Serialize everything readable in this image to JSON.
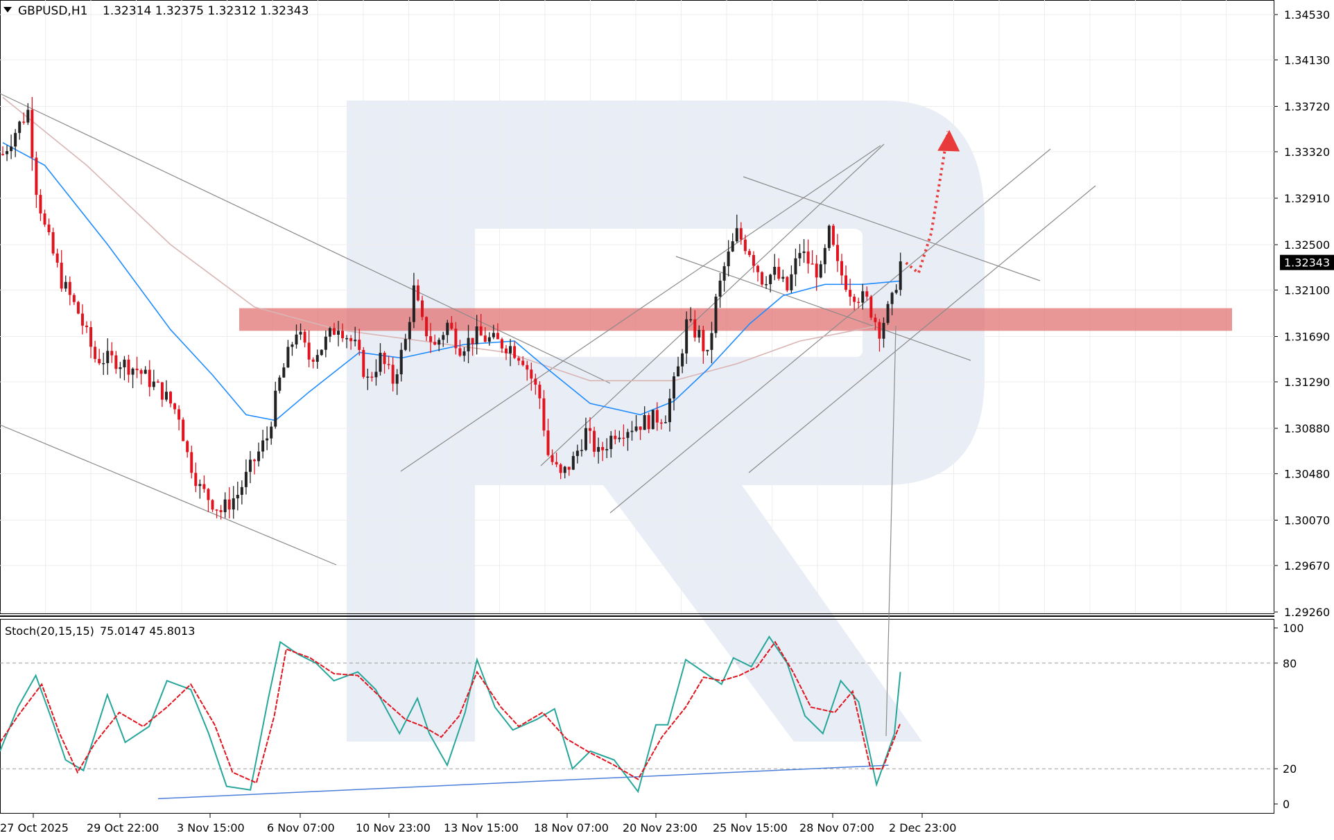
{
  "header": {
    "symbol": "GBPUSD,H1",
    "ohlc": "1.32314 1.32375 1.32312 1.32343"
  },
  "indicator": {
    "name": "Stoch(20,15,15)",
    "values": "75.0147 45.8013"
  },
  "colors": {
    "bull_candle": "#222222",
    "bear_candle": "#e0141e",
    "ma_fast": "#1e8cff",
    "ma_slow": "#d9b5b5",
    "zone": "#e06a6a",
    "forecast": "#e83a3a",
    "stoch_main": "#26a69a",
    "stoch_signal": "#e0141e",
    "stoch_trend": "#4a7fd9",
    "watermark": "#e9edf5"
  },
  "chart_data": [
    {
      "type": "candlestick",
      "title": "GBPUSD,H1",
      "current_price": "1.32343",
      "y_ticks": [
        "1.34530",
        "1.34130",
        "1.33720",
        "1.33320",
        "1.32910",
        "1.32500",
        "1.32100",
        "1.31690",
        "1.31290",
        "1.30880",
        "1.30480",
        "1.30070",
        "1.29670",
        "1.29260"
      ],
      "x_ticks": [
        "27 Oct 2025",
        "29 Oct 22:00",
        "3 Nov 15:00",
        "6 Nov 07:00",
        "10 Nov 23:00",
        "13 Nov 15:00",
        "18 Nov 07:00",
        "20 Nov 23:00",
        "25 Nov 15:00",
        "28 Nov 07:00",
        "2 Dec 23:00"
      ],
      "ylim": [
        1.2926,
        1.3453
      ],
      "price_path": [
        [
          0,
          1.333
        ],
        [
          3,
          1.335
        ],
        [
          6,
          1.3368
        ],
        [
          8,
          1.33
        ],
        [
          10,
          1.3265
        ],
        [
          14,
          1.3218
        ],
        [
          18,
          1.319
        ],
        [
          22,
          1.315
        ],
        [
          27,
          1.3148
        ],
        [
          32,
          1.314
        ],
        [
          38,
          1.312
        ],
        [
          42,
          1.31
        ],
        [
          44,
          1.3065
        ],
        [
          47,
          1.3035
        ],
        [
          52,
          1.3015
        ],
        [
          56,
          1.303
        ],
        [
          60,
          1.306
        ],
        [
          63,
          1.308
        ],
        [
          66,
          1.313
        ],
        [
          70,
          1.3175
        ],
        [
          73,
          1.315
        ],
        [
          76,
          1.316
        ],
        [
          80,
          1.318
        ],
        [
          84,
          1.316
        ],
        [
          87,
          1.313
        ],
        [
          90,
          1.315
        ],
        [
          93,
          1.313
        ],
        [
          96,
          1.3165
        ],
        [
          98,
          1.321
        ],
        [
          100,
          1.318
        ],
        [
          103,
          1.316
        ],
        [
          106,
          1.318
        ],
        [
          109,
          1.316
        ],
        [
          113,
          1.317
        ],
        [
          117,
          1.3165
        ],
        [
          121,
          1.316
        ],
        [
          124,
          1.315
        ],
        [
          128,
          1.3115
        ],
        [
          130,
          1.3065
        ],
        [
          133,
          1.3045
        ],
        [
          136,
          1.306
        ],
        [
          139,
          1.3085
        ],
        [
          142,
          1.3065
        ],
        [
          146,
          1.3085
        ],
        [
          150,
          1.309
        ],
        [
          154,
          1.3095
        ],
        [
          158,
          1.31
        ],
        [
          161,
          1.314
        ],
        [
          163,
          1.318
        ],
        [
          166,
          1.317
        ],
        [
          168,
          1.315
        ],
        [
          170,
          1.32
        ],
        [
          172,
          1.323
        ],
        [
          175,
          1.326
        ],
        [
          178,
          1.3245
        ],
        [
          181,
          1.322
        ],
        [
          184,
          1.3225
        ],
        [
          187,
          1.321
        ],
        [
          190,
          1.3245
        ],
        [
          193,
          1.323
        ],
        [
          195,
          1.3225
        ],
        [
          197,
          1.326
        ],
        [
          199,
          1.323
        ],
        [
          202,
          1.321
        ],
        [
          206,
          1.32
        ],
        [
          209,
          1.3175
        ],
        [
          212,
          1.32
        ],
        [
          214,
          1.3234
        ]
      ],
      "ma_fast": [
        [
          0,
          1.334
        ],
        [
          10,
          1.332
        ],
        [
          25,
          1.325
        ],
        [
          40,
          1.3175
        ],
        [
          50,
          1.3135
        ],
        [
          58,
          1.31
        ],
        [
          65,
          1.3095
        ],
        [
          73,
          1.312
        ],
        [
          85,
          1.3155
        ],
        [
          95,
          1.315
        ],
        [
          110,
          1.3162
        ],
        [
          122,
          1.3165
        ],
        [
          130,
          1.314
        ],
        [
          140,
          1.311
        ],
        [
          152,
          1.31
        ],
        [
          160,
          1.3112
        ],
        [
          168,
          1.314
        ],
        [
          178,
          1.318
        ],
        [
          186,
          1.3205
        ],
        [
          196,
          1.3215
        ],
        [
          205,
          1.3215
        ],
        [
          214,
          1.3218
        ]
      ],
      "ma_slow": [
        [
          0,
          1.338
        ],
        [
          20,
          1.332
        ],
        [
          40,
          1.325
        ],
        [
          60,
          1.3195
        ],
        [
          80,
          1.3175
        ],
        [
          100,
          1.3165
        ],
        [
          120,
          1.3155
        ],
        [
          140,
          1.313
        ],
        [
          160,
          1.313
        ],
        [
          175,
          1.3145
        ],
        [
          190,
          1.3165
        ],
        [
          208,
          1.3178
        ]
      ],
      "resistance_zone": [
        1.3174,
        1.3194
      ],
      "forecast": [
        [
          214,
          1.3234
        ],
        [
          217,
          1.3225
        ],
        [
          220,
          1.326
        ],
        [
          224,
          1.335
        ]
      ]
    },
    {
      "type": "line",
      "title": "Stoch(20,15,15)",
      "ylim": [
        0,
        100
      ],
      "y_ticks": [
        "100",
        "80",
        "20",
        "0"
      ],
      "levels": [
        80,
        20
      ],
      "series": [
        {
          "name": "main",
          "values_path": [
            [
              0,
              30
            ],
            [
              3,
              55
            ],
            [
              6,
              73
            ],
            [
              9,
              45
            ],
            [
              11,
              25
            ],
            [
              14,
              19
            ],
            [
              18,
              62
            ],
            [
              21,
              35
            ],
            [
              25,
              44
            ],
            [
              28,
              70
            ],
            [
              32,
              65
            ],
            [
              35,
              40
            ],
            [
              38,
              10
            ],
            [
              42,
              8
            ],
            [
              45,
              60
            ],
            [
              47,
              92
            ],
            [
              50,
              85
            ],
            [
              53,
              80
            ],
            [
              56,
              70
            ],
            [
              60,
              75
            ],
            [
              63,
              65
            ],
            [
              67,
              40
            ],
            [
              70,
              60
            ],
            [
              72,
              40
            ],
            [
              75,
              22
            ],
            [
              78,
              52
            ],
            [
              80,
              82
            ],
            [
              83,
              55
            ],
            [
              86,
              42
            ],
            [
              90,
              48
            ],
            [
              93,
              54
            ],
            [
              96,
              20
            ],
            [
              99,
              30
            ],
            [
              103,
              25
            ],
            [
              107,
              7
            ],
            [
              110,
              45
            ],
            [
              112,
              45
            ],
            [
              115,
              82
            ],
            [
              118,
              75
            ],
            [
              121,
              68
            ],
            [
              123,
              83
            ],
            [
              126,
              78
            ],
            [
              129,
              95
            ],
            [
              132,
              80
            ],
            [
              135,
              50
            ],
            [
              138,
              40
            ],
            [
              141,
              70
            ],
            [
              144,
              58
            ],
            [
              147,
              11
            ],
            [
              150,
              40
            ],
            [
              151,
              75
            ]
          ]
        },
        {
          "name": "signal",
          "values_path": [
            [
              0,
              35
            ],
            [
              3,
              50
            ],
            [
              7,
              68
            ],
            [
              10,
              40
            ],
            [
              13,
              18
            ],
            [
              16,
              35
            ],
            [
              20,
              52
            ],
            [
              24,
              44
            ],
            [
              28,
              55
            ],
            [
              32,
              68
            ],
            [
              36,
              45
            ],
            [
              39,
              18
            ],
            [
              43,
              12
            ],
            [
              46,
              50
            ],
            [
              48,
              88
            ],
            [
              52,
              83
            ],
            [
              56,
              74
            ],
            [
              60,
              73
            ],
            [
              64,
              60
            ],
            [
              68,
              48
            ],
            [
              71,
              44
            ],
            [
              74,
              38
            ],
            [
              77,
              50
            ],
            [
              80,
              75
            ],
            [
              84,
              55
            ],
            [
              87,
              44
            ],
            [
              91,
              52
            ],
            [
              95,
              37
            ],
            [
              99,
              29
            ],
            [
              103,
              22
            ],
            [
              107,
              14
            ],
            [
              111,
              38
            ],
            [
              115,
              55
            ],
            [
              118,
              72
            ],
            [
              121,
              70
            ],
            [
              124,
              73
            ],
            [
              127,
              78
            ],
            [
              130,
              92
            ],
            [
              133,
              75
            ],
            [
              136,
              55
            ],
            [
              140,
              52
            ],
            [
              143,
              64
            ],
            [
              146,
              20
            ],
            [
              148,
              20
            ],
            [
              151,
              46
            ]
          ]
        }
      ],
      "trendline": [
        [
          0,
          3
        ],
        [
          175,
          22
        ]
      ]
    }
  ]
}
